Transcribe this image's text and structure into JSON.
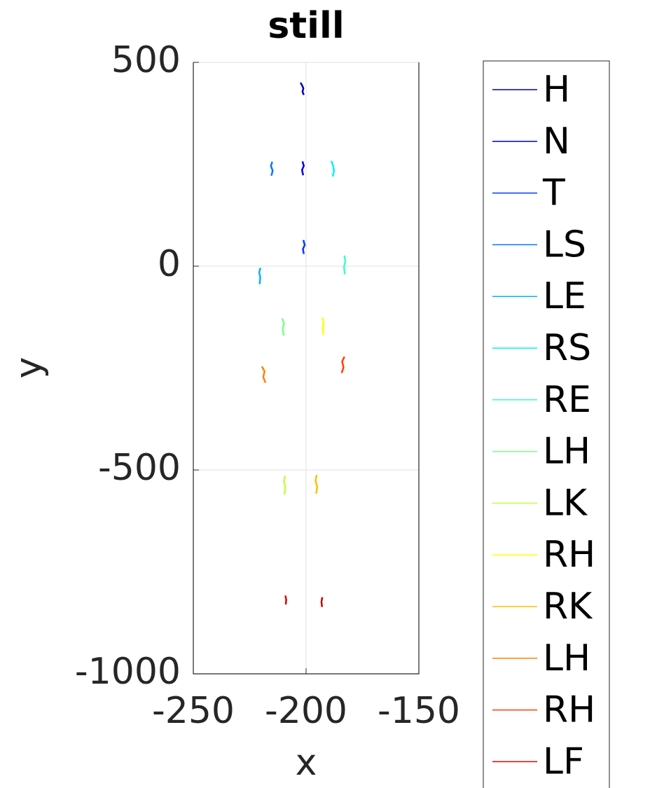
{
  "chart_data": {
    "type": "line",
    "title": "still",
    "x_label": "x",
    "y_label": "y",
    "xlim": [
      -250,
      -150
    ],
    "ylim": [
      -1000,
      500
    ],
    "xticks": [
      -250,
      -200,
      -150
    ],
    "yticks": [
      -1000,
      -500,
      0,
      500
    ],
    "grid": true,
    "legend": "outside-right",
    "series": [
      {
        "name": "H",
        "color": "#0000b4",
        "x": [
          -202.5,
          -201.8,
          -201.2,
          -201.6,
          -201.0
        ],
        "y": [
          450,
          444,
          436,
          428,
          420
        ]
      },
      {
        "name": "N",
        "color": "#0000e0",
        "x": [
          -201.6,
          -201.0,
          -201.8,
          -201.3
        ],
        "y": [
          257,
          246,
          236,
          223
        ]
      },
      {
        "name": "T",
        "color": "#0038ff",
        "x": [
          -201.2,
          -200.6,
          -201.4,
          -201.0
        ],
        "y": [
          64,
          52,
          42,
          30
        ]
      },
      {
        "name": "LS",
        "color": "#0078ff",
        "x": [
          -215.0,
          -215.6,
          -214.8,
          -215.4
        ],
        "y": [
          256,
          246,
          234,
          222
        ]
      },
      {
        "name": "LE",
        "color": "#00b4ff",
        "x": [
          -220.2,
          -220.8,
          -220.3,
          -220.6
        ],
        "y": [
          -4,
          -15,
          -28,
          -44
        ]
      },
      {
        "name": "RS",
        "color": "#00f0ff",
        "x": [
          -188.8,
          -188.0,
          -187.6,
          -188.2
        ],
        "y": [
          258,
          246,
          234,
          220
        ]
      },
      {
        "name": "RE",
        "color": "#38ffc8",
        "x": [
          -183.0,
          -182.6,
          -183.2,
          -182.8
        ],
        "y": [
          26,
          12,
          -2,
          -20
        ]
      },
      {
        "name": "LH",
        "color": "#78ff88",
        "x": [
          -210.6,
          -209.8,
          -210.4,
          -209.9
        ],
        "y": [
          -128,
          -140,
          -154,
          -170
        ]
      },
      {
        "name": "LK",
        "color": "#c0ff40",
        "x": [
          -209.3,
          -209.8,
          -209.2,
          -209.6
        ],
        "y": [
          -514,
          -528,
          -544,
          -560
        ]
      },
      {
        "name": "RH",
        "color": "#ffff00",
        "x": [
          -192.8,
          -192.2,
          -192.6,
          -192.3
        ],
        "y": [
          -126,
          -138,
          -152,
          -168
        ]
      },
      {
        "name": "RK",
        "color": "#ffc000",
        "x": [
          -195.3,
          -195.8,
          -195.1,
          -195.5
        ],
        "y": [
          -512,
          -526,
          -542,
          -558
        ]
      },
      {
        "name": "LH",
        "color": "#ff8000",
        "x": [
          -219.6,
          -218.4,
          -219.0,
          -218.0
        ],
        "y": [
          -246,
          -258,
          -272,
          -286
        ]
      },
      {
        "name": "RH",
        "color": "#ff4000",
        "x": [
          -183.0,
          -184.0,
          -183.4,
          -184.2
        ],
        "y": [
          -222,
          -234,
          -248,
          -262
        ]
      },
      {
        "name": "LF",
        "color": "#e00000",
        "x": [
          -209.2,
          -208.8,
          -209.0
        ],
        "y": [
          -808,
          -818,
          -830
        ]
      },
      {
        "name": null,
        "color": "#c00000",
        "x": [
          -192.8,
          -193.2,
          -192.9
        ],
        "y": [
          -812,
          -824,
          -836
        ]
      }
    ]
  }
}
